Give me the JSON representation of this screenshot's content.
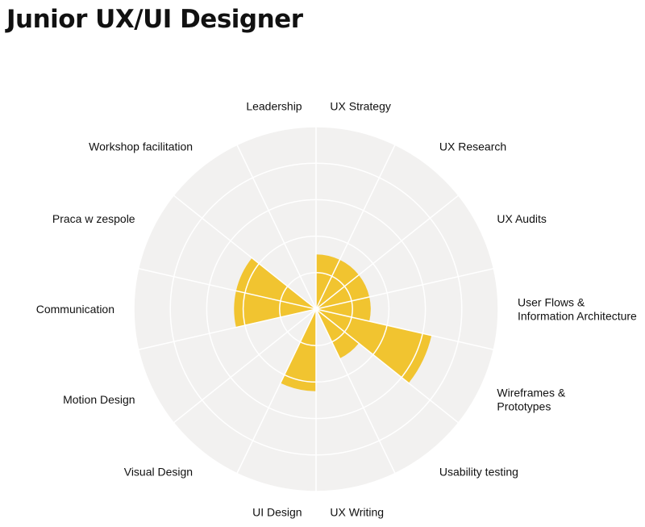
{
  "title": "Junior UX/UI Designer",
  "colors": {
    "background": "#f2f1f0",
    "grid": "#ffffff",
    "fill": "#f1c430",
    "text": "#111111"
  },
  "chart_data": {
    "type": "polar-area",
    "max": 5,
    "rings": 5,
    "grid": true,
    "categories": [
      "UX Strategy",
      "UX Research",
      "UX Audits",
      [
        "User Flows &",
        "Information Architecture"
      ],
      [
        "Wireframes  &",
        "Prototypes"
      ],
      "Usability testing",
      "UX Writing",
      "UI Design",
      "Visual Design",
      "Motion Design",
      "Communication",
      "Praca w zespole",
      "Workshop facilitation",
      "Leadership"
    ],
    "values": [
      1.5,
      1.5,
      1.5,
      1.5,
      3.25,
      1.5,
      0,
      2.25,
      0,
      0,
      2.25,
      2.25,
      0,
      0
    ]
  }
}
